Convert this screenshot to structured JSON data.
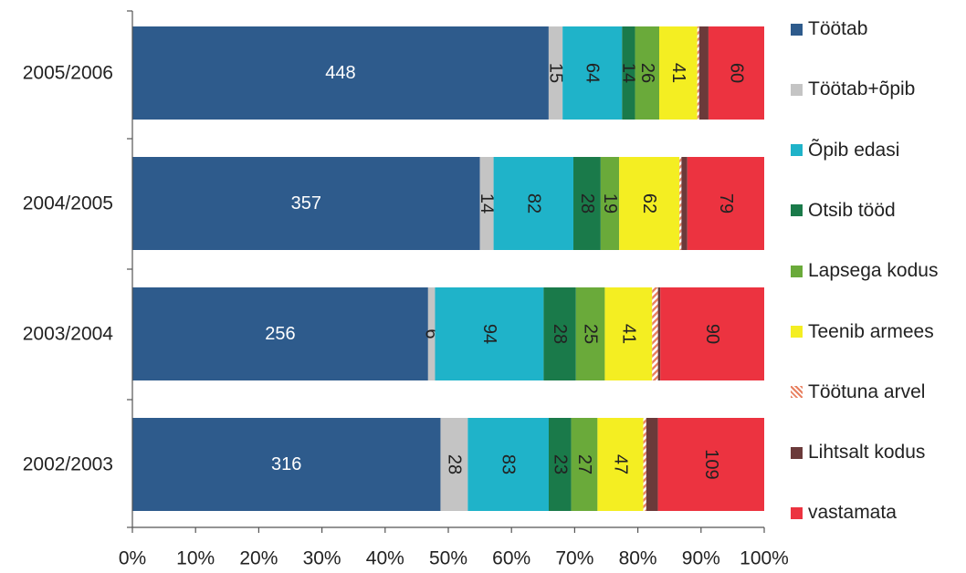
{
  "chart_data": {
    "type": "bar",
    "orientation": "horizontal",
    "stacked": "percent",
    "categories": [
      "2005/2006",
      "2004/2005",
      "2003/2004",
      "2002/2003"
    ],
    "x_ticks": [
      "0%",
      "10%",
      "20%",
      "30%",
      "40%",
      "50%",
      "60%",
      "70%",
      "80%",
      "90%",
      "100%"
    ],
    "xlim": [
      0,
      100
    ],
    "grid": false,
    "legend_position": "right",
    "series": [
      {
        "name": "Töötab",
        "color": "#2e5b8c",
        "values": [
          448,
          357,
          256,
          316
        ],
        "labels": [
          "448",
          "357",
          "256",
          "316"
        ],
        "label_color": "#ffffff"
      },
      {
        "name": "Töötab+õpib",
        "color": "#c4c4c4",
        "values": [
          15,
          14,
          6,
          28
        ],
        "labels": [
          "15",
          "14",
          "6",
          "28"
        ],
        "label_color": "#222222"
      },
      {
        "name": "Õpib edasi",
        "color": "#1fb3c9",
        "values": [
          64,
          82,
          94,
          83
        ],
        "labels": [
          "64",
          "82",
          "94",
          "83"
        ],
        "label_color": "#222222"
      },
      {
        "name": "Otsib tööd",
        "color": "#1a7a4a",
        "values": [
          14,
          28,
          28,
          23
        ],
        "labels": [
          "14",
          "28",
          "28",
          "23"
        ],
        "label_color": "#222222"
      },
      {
        "name": "Lapsega kodus",
        "color": "#6aaa3a",
        "values": [
          26,
          19,
          25,
          27
        ],
        "labels": [
          "26",
          "19",
          "25",
          "27"
        ],
        "label_color": "#222222"
      },
      {
        "name": "Teenib armees",
        "color": "#f4ee22",
        "values": [
          41,
          62,
          41,
          47
        ],
        "labels": [
          "41",
          "62",
          "41",
          "47"
        ],
        "label_color": "#222222"
      },
      {
        "name": "Töötuna arvel",
        "color": "#e88060",
        "values": [
          2,
          2,
          5,
          3
        ],
        "labels": [
          "",
          "",
          "",
          ""
        ],
        "label_color": "#222222",
        "pattern": "hatch"
      },
      {
        "name": "Lihtsalt kodus",
        "color": "#6b3a3a",
        "values": [
          10,
          6,
          2,
          12
        ],
        "labels": [
          "",
          "",
          "",
          ""
        ],
        "label_color": "#ffffff"
      },
      {
        "name": "vastamata",
        "color": "#ec3340",
        "values": [
          60,
          79,
          90,
          109
        ],
        "labels": [
          "60",
          "79",
          "90",
          "109"
        ],
        "label_color": "#222222"
      }
    ]
  }
}
